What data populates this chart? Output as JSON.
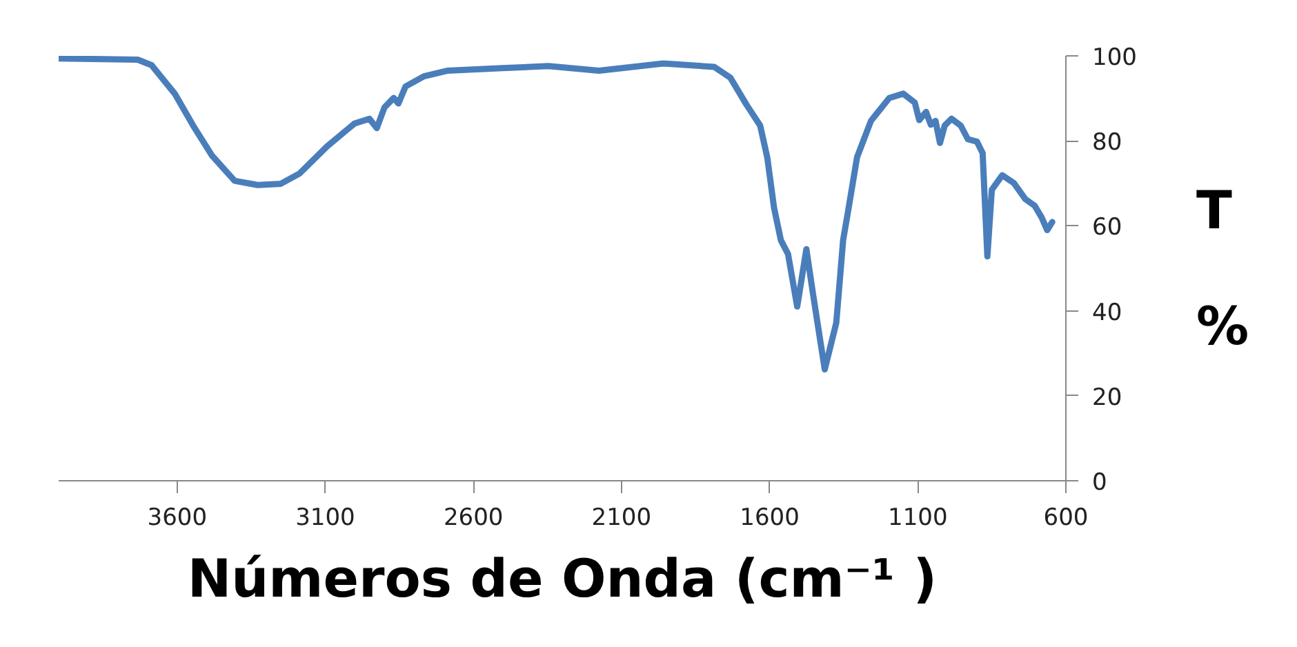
{
  "chart_data": {
    "type": "line",
    "xlabel": "Números de Onda (cm⁻¹ )",
    "ylabel": "T %",
    "xlim": [
      4000,
      600
    ],
    "xticks": [
      3600,
      3100,
      2600,
      2100,
      1600,
      1100,
      600
    ],
    "ylim": [
      0,
      100
    ],
    "yticks": [
      0,
      20,
      40,
      60,
      80,
      100
    ],
    "grid": false,
    "marker": "none",
    "line_style": "solid",
    "series": [
      {
        "color": "#4a7ebb",
        "x": [
          4000,
          3733,
          3686,
          3608,
          3546,
          3483,
          3406,
          3328,
          3250,
          3187,
          3094,
          3001,
          2951,
          2926,
          2900,
          2869,
          2853,
          2829,
          2767,
          2689,
          2503,
          2347,
          2176,
          1959,
          1787,
          1733,
          1678,
          1632,
          1608,
          1585,
          1562,
          1538,
          1507,
          1476,
          1453,
          1414,
          1375,
          1352,
          1336,
          1305,
          1258,
          1196,
          1149,
          1110,
          1095,
          1072,
          1056,
          1040,
          1025,
          1009,
          986,
          955,
          931,
          900,
          881,
          865,
          850,
          815,
          776,
          737,
          705,
          682,
          663,
          646
        ],
        "values": [
          99.4,
          99.1,
          97.8,
          91.1,
          83.6,
          76.6,
          70.6,
          69.6,
          69.9,
          72.3,
          78.7,
          84.1,
          85.2,
          83.0,
          87.9,
          90.1,
          88.8,
          92.8,
          95.2,
          96.5,
          97.1,
          97.6,
          96.5,
          98.2,
          97.4,
          94.9,
          88.5,
          83.6,
          76.1,
          64.2,
          56.6,
          53.4,
          41.0,
          54.5,
          43.7,
          26.2,
          37.2,
          56.6,
          63.1,
          76.1,
          84.7,
          90.1,
          91.1,
          89.0,
          84.9,
          86.8,
          83.8,
          84.7,
          79.5,
          83.6,
          85.2,
          83.6,
          80.4,
          79.8,
          77.1,
          52.8,
          68.5,
          71.9,
          70.1,
          66.3,
          64.7,
          62.0,
          59.0,
          60.9
        ]
      }
    ]
  }
}
